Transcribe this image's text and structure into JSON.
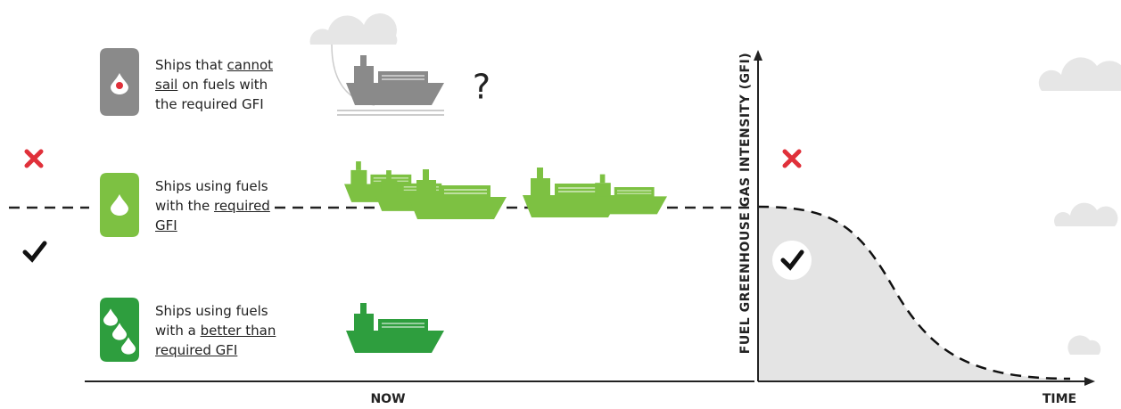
{
  "rows": [
    {
      "before": "Ships that ",
      "underlined": "cannot sail",
      "after": " on fuels with the required GFI"
    },
    {
      "before": "Ships using fuels with the ",
      "underlined": "required GFI"
    },
    {
      "before": "Ships using fuels with a ",
      "underlined": "better than required GFI"
    }
  ],
  "question_mark": "?",
  "x_axis_now": "NOW",
  "x_axis_time": "TIME",
  "y_axis_label": "FUEL GREENHOUSE GAS INTENSITY (GFI)"
}
